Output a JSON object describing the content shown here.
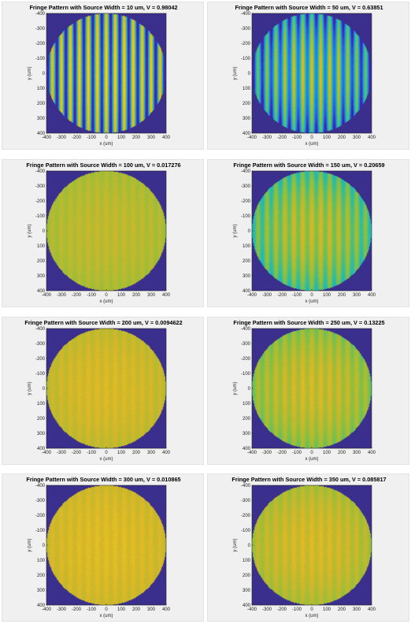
{
  "colors": {
    "background": "#f0f0f0",
    "outside_disk": "#3b2f8e",
    "colormap": [
      "#3e26a8",
      "#2f6ef0",
      "#10a8d9",
      "#2cbda4",
      "#8cc03c",
      "#d8b628",
      "#f5d51c"
    ]
  },
  "chart_data": [
    {
      "type": "heatmap",
      "title": "Fringe Pattern with Source Width = 10 um, V = 0.98042",
      "source_width_um": 10,
      "visibility": 0.98042,
      "xlabel": "x (um)",
      "ylabel": "y (um)",
      "xlim": [
        -400,
        400
      ],
      "ylim": [
        -400,
        400
      ],
      "xticks": [
        "-400",
        "-300",
        "-200",
        "-100",
        "0",
        "100",
        "200",
        "300",
        "400"
      ],
      "yticks": [
        "-400",
        "-300",
        "-200",
        "-100",
        "0",
        "100",
        "200",
        "300",
        "400"
      ],
      "fringe_period_um": 60,
      "mean_level": 0.5,
      "edge_falloff": 0.1,
      "aperture_radius_um": 400
    },
    {
      "type": "heatmap",
      "title": "Fringe Pattern with Source Width = 50 um, V = 0.63851",
      "source_width_um": 50,
      "visibility": 0.63851,
      "xlabel": "x (um)",
      "ylabel": "y (um)",
      "xlim": [
        -400,
        400
      ],
      "ylim": [
        -400,
        400
      ],
      "xticks": [
        "-400",
        "-300",
        "-200",
        "-100",
        "0",
        "100",
        "200",
        "300",
        "400"
      ],
      "yticks": [
        "-400",
        "-300",
        "-200",
        "-100",
        "0",
        "100",
        "200",
        "300",
        "400"
      ],
      "fringe_period_um": 60,
      "mean_level": 0.55,
      "edge_falloff": 0.3,
      "aperture_radius_um": 400
    },
    {
      "type": "heatmap",
      "title": "Fringe Pattern with Source Width = 100 um, V = 0.017276",
      "source_width_um": 100,
      "visibility": 0.017276,
      "xlabel": "x (um)",
      "ylabel": "y (um)",
      "xlim": [
        -400,
        400
      ],
      "ylim": [
        -400,
        400
      ],
      "xticks": [
        "-400",
        "-300",
        "-200",
        "-100",
        "0",
        "100",
        "200",
        "300",
        "400"
      ],
      "yticks": [
        "-400",
        "-300",
        "-200",
        "-100",
        "0",
        "100",
        "200",
        "300",
        "400"
      ],
      "fringe_period_um": 60,
      "mean_level": 0.78,
      "edge_falloff": 0.05,
      "aperture_radius_um": 400
    },
    {
      "type": "heatmap",
      "title": "Fringe Pattern with Source Width = 150 um, V = 0.20659",
      "source_width_um": 150,
      "visibility": 0.20659,
      "xlabel": "x (um)",
      "ylabel": "y (um)",
      "xlim": [
        -400,
        400
      ],
      "ylim": [
        -400,
        400
      ],
      "xticks": [
        "-400",
        "-300",
        "-200",
        "-100",
        "0",
        "100",
        "200",
        "300",
        "400"
      ],
      "yticks": [
        "-400",
        "-300",
        "-200",
        "-100",
        "0",
        "100",
        "200",
        "300",
        "400"
      ],
      "fringe_period_um": 60,
      "mean_level": 0.74,
      "edge_falloff": 0.2,
      "aperture_radius_um": 400
    },
    {
      "type": "heatmap",
      "title": "Fringe Pattern with Source Width = 200 um, V = 0.0094622",
      "source_width_um": 200,
      "visibility": 0.0094622,
      "xlabel": "x (um)",
      "ylabel": "y (um)",
      "xlim": [
        -400,
        400
      ],
      "ylim": [
        -400,
        400
      ],
      "xticks": [
        "-400",
        "-300",
        "-200",
        "-100",
        "0",
        "100",
        "200",
        "300",
        "400"
      ],
      "yticks": [
        "-400",
        "-300",
        "-200",
        "-100",
        "0",
        "100",
        "200",
        "300",
        "400"
      ],
      "fringe_period_um": 60,
      "mean_level": 0.84,
      "edge_falloff": 0.06,
      "aperture_radius_um": 400
    },
    {
      "type": "heatmap",
      "title": "Fringe Pattern with Source Width = 250 um, V = 0.13225",
      "source_width_um": 250,
      "visibility": 0.13225,
      "xlabel": "x (um)",
      "ylabel": "y (um)",
      "xlim": [
        -400,
        400
      ],
      "ylim": [
        -400,
        400
      ],
      "xticks": [
        "-400",
        "-300",
        "-200",
        "-100",
        "0",
        "100",
        "200",
        "300",
        "400"
      ],
      "yticks": [
        "-400",
        "-300",
        "-200",
        "-100",
        "0",
        "100",
        "200",
        "300",
        "400"
      ],
      "fringe_period_um": 60,
      "mean_level": 0.8,
      "edge_falloff": 0.14,
      "aperture_radius_um": 400
    },
    {
      "type": "heatmap",
      "title": "Fringe Pattern with Source Width = 300 um, V = 0.010865",
      "source_width_um": 300,
      "visibility": 0.010865,
      "xlabel": "x (um)",
      "ylabel": "y (um)",
      "xlim": [
        -400,
        400
      ],
      "ylim": [
        -400,
        400
      ],
      "xticks": [
        "-400",
        "-300",
        "-200",
        "-100",
        "0",
        "100",
        "200",
        "300",
        "400"
      ],
      "yticks": [
        "-400",
        "-300",
        "-200",
        "-100",
        "0",
        "100",
        "200",
        "300",
        "400"
      ],
      "fringe_period_um": 60,
      "mean_level": 0.86,
      "edge_falloff": 0.05,
      "aperture_radius_um": 400
    },
    {
      "type": "heatmap",
      "title": "Fringe Pattern with Source Width = 350 um, V = 0.085817",
      "source_width_um": 350,
      "visibility": 0.085817,
      "xlabel": "x (um)",
      "ylabel": "y (um)",
      "xlim": [
        -400,
        400
      ],
      "ylim": [
        -400,
        400
      ],
      "xticks": [
        "-400",
        "-300",
        "-200",
        "-100",
        "0",
        "100",
        "200",
        "300",
        "400"
      ],
      "yticks": [
        "-400",
        "-300",
        "-200",
        "-100",
        "0",
        "100",
        "200",
        "300",
        "400"
      ],
      "fringe_period_um": 60,
      "mean_level": 0.83,
      "edge_falloff": 0.1,
      "aperture_radius_um": 400
    }
  ]
}
